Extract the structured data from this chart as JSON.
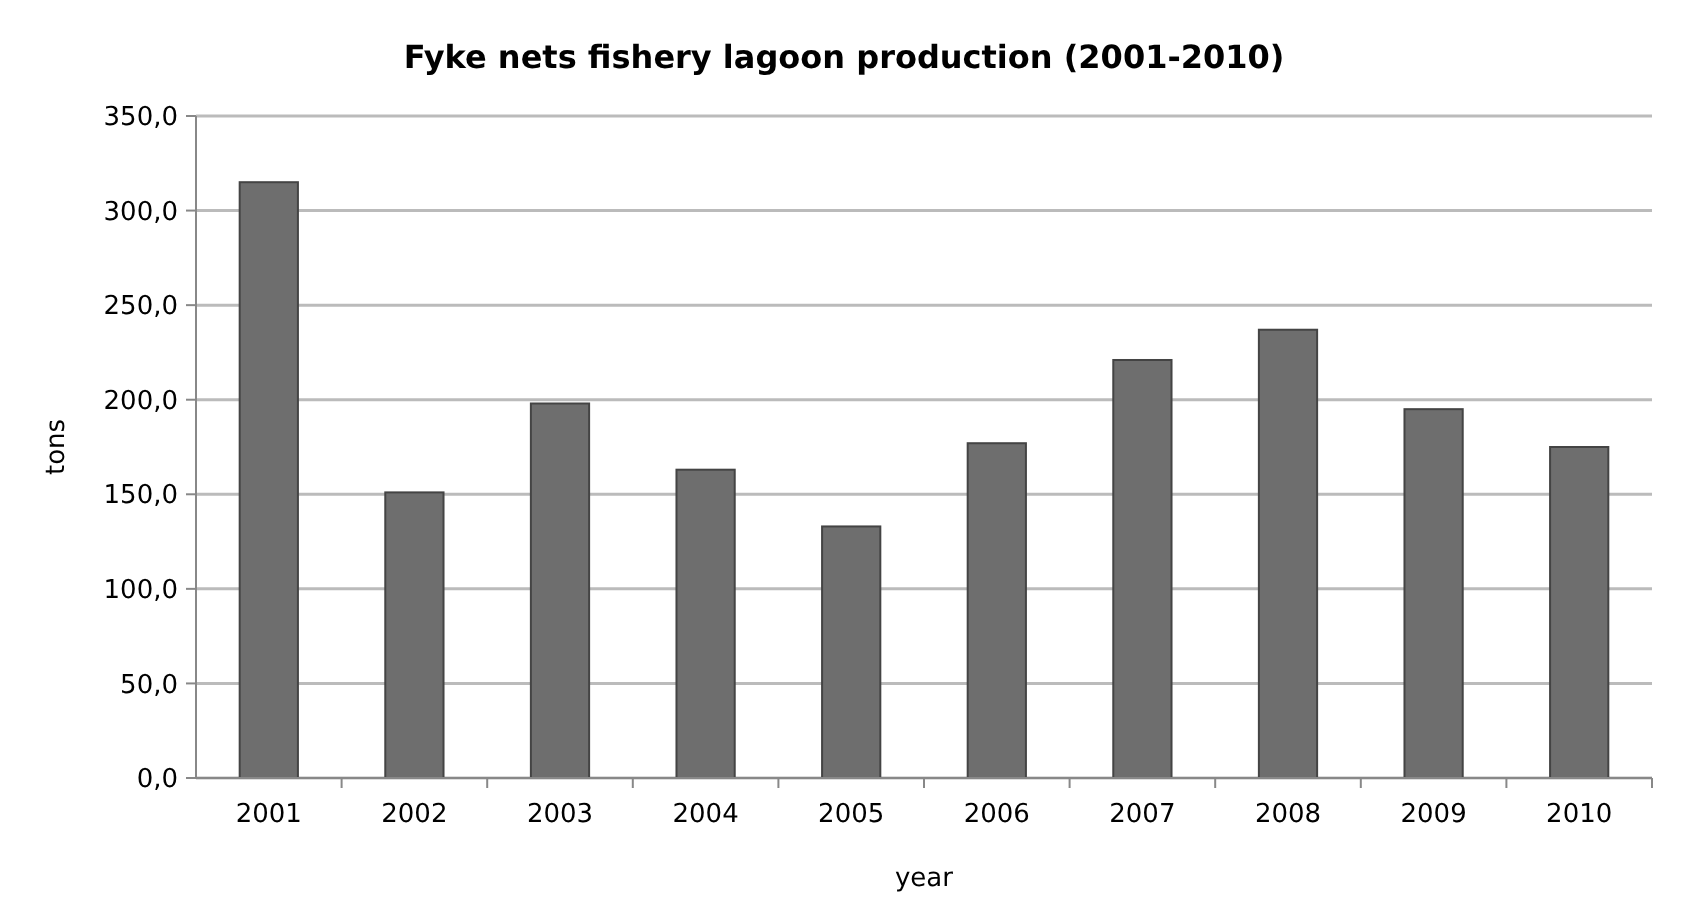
{
  "chart_data": {
    "type": "bar",
    "title": "Fyke nets fishery lagoon production (2001-2010)",
    "xlabel": "year",
    "ylabel": "tons",
    "categories": [
      "2001",
      "2002",
      "2003",
      "2004",
      "2005",
      "2006",
      "2007",
      "2008",
      "2009",
      "2010"
    ],
    "values": [
      315,
      151,
      198,
      163,
      133,
      177,
      221,
      237,
      195,
      175
    ],
    "color": "#6e6e6e",
    "ylim": [
      0,
      350
    ],
    "yticks": [
      {
        "value": 0,
        "label": "0,0"
      },
      {
        "value": 50,
        "label": "50,0"
      },
      {
        "value": 100,
        "label": "100,0"
      },
      {
        "value": 150,
        "label": "150,0"
      },
      {
        "value": 200,
        "label": "200,0"
      },
      {
        "value": 250,
        "label": "250,0"
      },
      {
        "value": 300,
        "label": "300,0"
      },
      {
        "value": 350,
        "label": "350,0"
      }
    ],
    "grid": "y"
  }
}
